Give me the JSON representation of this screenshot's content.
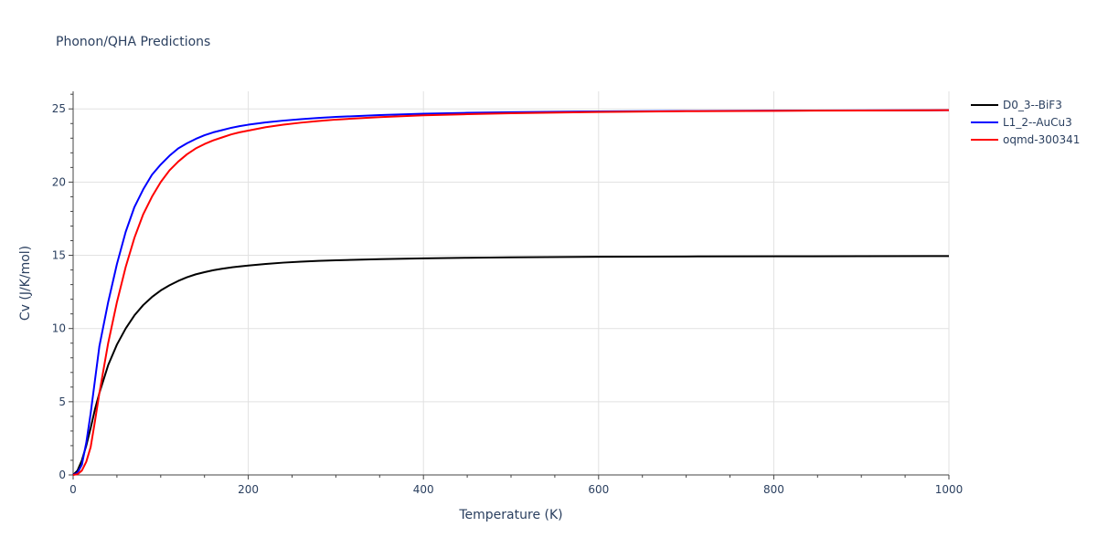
{
  "chart_data": {
    "type": "line",
    "title": "Phonon/QHA Predictions",
    "xlabel": "Temperature (K)",
    "ylabel": "Cv (J/K/mol)",
    "xlim": [
      0,
      1000
    ],
    "ylim": [
      0,
      26.2
    ],
    "xticks": [
      0,
      200,
      400,
      600,
      800,
      1000
    ],
    "yticks": [
      0,
      5,
      10,
      15,
      20,
      25
    ],
    "grid": true,
    "legend_position": "top-right",
    "series": [
      {
        "name": "D0_3--BiF3",
        "color": "#000000",
        "x": [
          0,
          5,
          10,
          15,
          20,
          25,
          30,
          40,
          50,
          60,
          70,
          80,
          90,
          100,
          110,
          120,
          130,
          140,
          150,
          160,
          170,
          180,
          190,
          200,
          220,
          240,
          260,
          280,
          300,
          350,
          400,
          450,
          500,
          600,
          700,
          800,
          900,
          1000
        ],
        "values": [
          0,
          0.3,
          1.0,
          2.0,
          3.2,
          4.5,
          5.6,
          7.5,
          8.9,
          10.0,
          10.9,
          11.6,
          12.15,
          12.6,
          12.95,
          13.25,
          13.5,
          13.7,
          13.85,
          13.98,
          14.08,
          14.17,
          14.24,
          14.3,
          14.41,
          14.5,
          14.57,
          14.62,
          14.66,
          14.74,
          14.79,
          14.83,
          14.86,
          14.9,
          14.92,
          14.93,
          14.94,
          14.95
        ]
      },
      {
        "name": "L1_2--AuCu3",
        "color": "#0000ff",
        "x": [
          0,
          5,
          10,
          15,
          20,
          25,
          30,
          40,
          50,
          60,
          70,
          80,
          90,
          100,
          110,
          120,
          130,
          140,
          150,
          160,
          170,
          180,
          190,
          200,
          220,
          240,
          260,
          280,
          300,
          350,
          400,
          450,
          500,
          600,
          700,
          800,
          900,
          1000
        ],
        "values": [
          0,
          0.15,
          0.7,
          2.2,
          4.2,
          6.5,
          8.8,
          11.8,
          14.4,
          16.6,
          18.3,
          19.5,
          20.5,
          21.2,
          21.8,
          22.3,
          22.65,
          22.95,
          23.2,
          23.4,
          23.55,
          23.7,
          23.82,
          23.92,
          24.08,
          24.2,
          24.3,
          24.38,
          24.45,
          24.58,
          24.67,
          24.73,
          24.77,
          24.83,
          24.86,
          24.88,
          24.9,
          24.91
        ]
      },
      {
        "name": "oqmd-300341",
        "color": "#ff0000",
        "x": [
          0,
          5,
          10,
          15,
          20,
          25,
          30,
          40,
          50,
          60,
          70,
          80,
          90,
          100,
          110,
          120,
          130,
          140,
          150,
          160,
          170,
          180,
          190,
          200,
          220,
          240,
          260,
          280,
          300,
          350,
          400,
          450,
          500,
          600,
          700,
          800,
          900,
          1000
        ],
        "values": [
          0,
          0.05,
          0.3,
          0.9,
          1.9,
          3.7,
          5.6,
          9.0,
          11.8,
          14.2,
          16.2,
          17.8,
          19.0,
          20.0,
          20.8,
          21.4,
          21.9,
          22.3,
          22.6,
          22.85,
          23.05,
          23.25,
          23.4,
          23.52,
          23.75,
          23.92,
          24.06,
          24.17,
          24.27,
          24.44,
          24.56,
          24.64,
          24.7,
          24.79,
          24.84,
          24.87,
          24.89,
          24.91
        ]
      }
    ]
  }
}
